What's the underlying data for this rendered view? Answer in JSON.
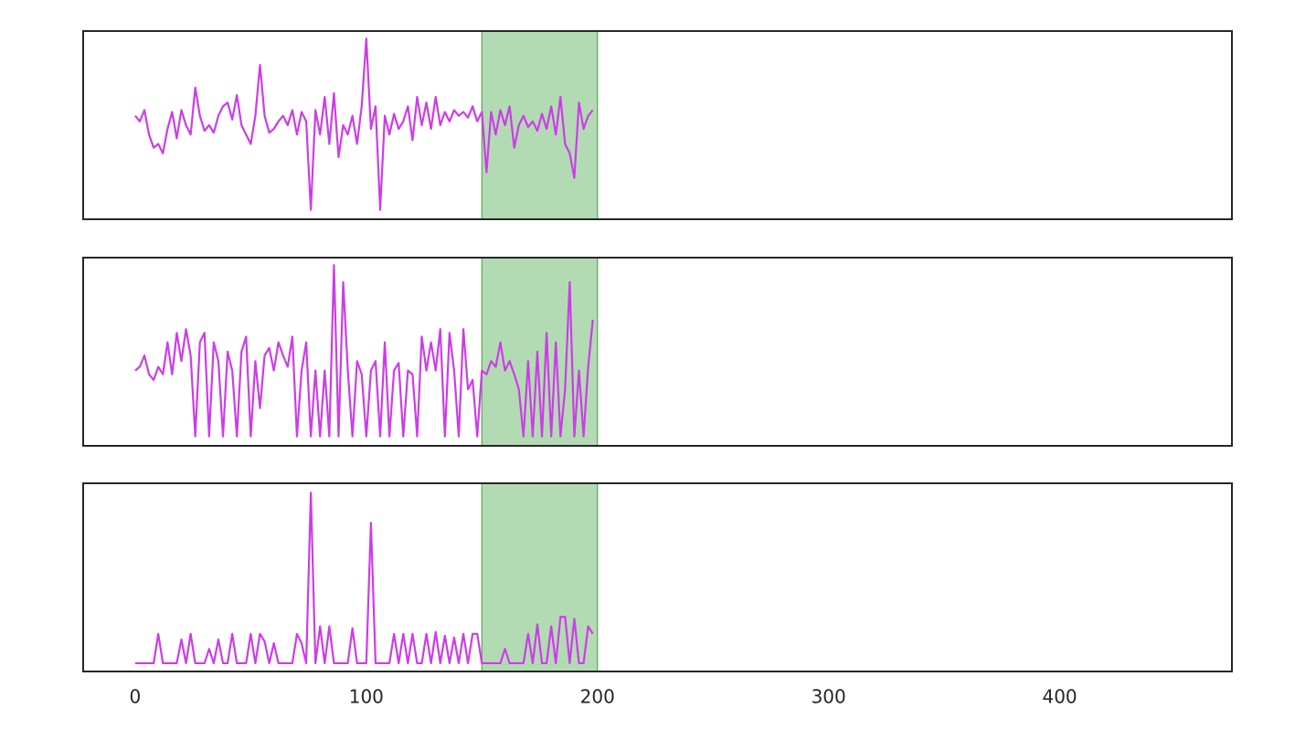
{
  "chart_data": [
    {
      "type": "line",
      "color": "#cc3de8",
      "xlim": [
        -22.5,
        474.5
      ],
      "ylim": [
        0,
        100
      ],
      "span": [
        150,
        200
      ],
      "span_color": "#b3dbb3",
      "span_edge": "#5aa85a",
      "x": [
        0,
        2,
        4,
        6,
        8,
        10,
        12,
        14,
        16,
        18,
        20,
        22,
        24,
        26,
        28,
        30,
        32,
        34,
        36,
        38,
        40,
        42,
        44,
        46,
        48,
        50,
        52,
        54,
        56,
        58,
        60,
        62,
        64,
        66,
        68,
        70,
        72,
        74,
        76,
        78,
        80,
        82,
        84,
        86,
        88,
        90,
        92,
        94,
        96,
        98,
        100,
        102,
        104,
        106,
        108,
        110,
        112,
        114,
        116,
        118,
        120,
        122,
        124,
        126,
        128,
        130,
        132,
        134,
        136,
        138,
        140,
        142,
        144,
        146,
        148,
        150,
        152,
        154,
        156,
        158,
        160,
        162,
        164,
        166,
        168,
        170,
        172,
        174,
        176,
        178,
        180,
        182,
        184,
        186,
        188,
        190,
        192,
        194,
        196,
        198
      ],
      "values": [
        55,
        52,
        58,
        45,
        38,
        40,
        35,
        48,
        57,
        43,
        58,
        50,
        45,
        70,
        55,
        47,
        50,
        46,
        55,
        60,
        62,
        53,
        66,
        50,
        45,
        40,
        55,
        82,
        55,
        46,
        48,
        52,
        55,
        50,
        58,
        45,
        57,
        52,
        5,
        58,
        45,
        65,
        40,
        67,
        33,
        50,
        45,
        55,
        40,
        60,
        96,
        48,
        60,
        5,
        55,
        45,
        56,
        48,
        52,
        60,
        42,
        65,
        50,
        62,
        48,
        65,
        50,
        57,
        52,
        58,
        55,
        57,
        54,
        60,
        52,
        57,
        25,
        57,
        45,
        58,
        50,
        60,
        38,
        50,
        55,
        49,
        52,
        47,
        56,
        48,
        60,
        45,
        65,
        40,
        35,
        22,
        62,
        48,
        55,
        58
      ]
    },
    {
      "type": "line",
      "color": "#cc3de8",
      "xlim": [
        -22.5,
        474.5
      ],
      "ylim": [
        0,
        100
      ],
      "span": [
        150,
        200
      ],
      "span_color": "#b3dbb3",
      "span_edge": "#5aa85a",
      "x": [
        0,
        2,
        4,
        6,
        8,
        10,
        12,
        14,
        16,
        18,
        20,
        22,
        24,
        26,
        28,
        30,
        32,
        34,
        36,
        38,
        40,
        42,
        44,
        46,
        48,
        50,
        52,
        54,
        56,
        58,
        60,
        62,
        64,
        66,
        68,
        70,
        72,
        74,
        76,
        78,
        80,
        82,
        84,
        86,
        88,
        90,
        92,
        94,
        96,
        98,
        100,
        102,
        104,
        106,
        108,
        110,
        112,
        114,
        116,
        118,
        120,
        122,
        124,
        126,
        128,
        130,
        132,
        134,
        136,
        138,
        140,
        142,
        144,
        146,
        148,
        150,
        152,
        154,
        156,
        158,
        160,
        162,
        164,
        166,
        168,
        170,
        172,
        174,
        176,
        178,
        180,
        182,
        184,
        186,
        188,
        190,
        192,
        194,
        196,
        198
      ],
      "values": [
        40,
        42,
        48,
        38,
        35,
        42,
        38,
        55,
        38,
        60,
        45,
        62,
        48,
        5,
        55,
        60,
        5,
        55,
        45,
        5,
        50,
        40,
        5,
        50,
        58,
        5,
        45,
        20,
        48,
        52,
        40,
        55,
        48,
        42,
        58,
        5,
        40,
        55,
        5,
        40,
        5,
        40,
        5,
        96,
        5,
        87,
        40,
        5,
        45,
        38,
        5,
        40,
        45,
        5,
        55,
        5,
        40,
        44,
        5,
        40,
        38,
        5,
        58,
        40,
        55,
        40,
        62,
        5,
        60,
        40,
        5,
        62,
        30,
        35,
        5,
        40,
        38,
        45,
        42,
        55,
        40,
        45,
        38,
        30,
        5,
        45,
        5,
        50,
        5,
        60,
        5,
        55,
        5,
        30,
        87,
        5,
        40,
        5,
        42,
        67
      ]
    },
    {
      "type": "line",
      "color": "#cc3de8",
      "xlim": [
        -22.5,
        474.5
      ],
      "ylim": [
        0,
        100
      ],
      "span": [
        150,
        200
      ],
      "span_color": "#b3dbb3",
      "span_edge": "#5aa85a",
      "xticks": [
        0,
        100,
        200,
        300,
        400
      ],
      "x": [
        0,
        2,
        4,
        6,
        8,
        10,
        12,
        14,
        16,
        18,
        20,
        22,
        24,
        26,
        28,
        30,
        32,
        34,
        36,
        38,
        40,
        42,
        44,
        46,
        48,
        50,
        52,
        54,
        56,
        58,
        60,
        62,
        64,
        66,
        68,
        70,
        72,
        74,
        76,
        78,
        80,
        82,
        84,
        86,
        88,
        90,
        92,
        94,
        96,
        98,
        100,
        102,
        104,
        106,
        108,
        110,
        112,
        114,
        116,
        118,
        120,
        122,
        124,
        126,
        128,
        130,
        132,
        134,
        136,
        138,
        140,
        142,
        144,
        146,
        148,
        150,
        152,
        154,
        156,
        158,
        160,
        162,
        164,
        166,
        168,
        170,
        172,
        174,
        176,
        178,
        180,
        182,
        184,
        186,
        188,
        190,
        192,
        194,
        196,
        198
      ],
      "values": [
        4.4,
        4.4,
        4.4,
        4.4,
        4.4,
        20,
        4.4,
        4.4,
        4.4,
        4.4,
        17,
        4.4,
        20,
        4.4,
        4.4,
        4.4,
        12,
        4.4,
        17,
        4.4,
        4.4,
        20,
        4.4,
        4.4,
        4.4,
        20,
        4.4,
        20,
        16,
        4.4,
        15,
        4.4,
        4.4,
        4.4,
        4.4,
        20,
        15,
        4.4,
        95,
        4.4,
        24,
        4.4,
        24,
        4.4,
        4.4,
        4.4,
        4.4,
        23,
        4.4,
        4.4,
        4.4,
        79,
        4.4,
        4.4,
        4.4,
        4.4,
        20,
        4.4,
        20,
        4.4,
        20,
        4.4,
        4.4,
        20,
        4.4,
        21,
        4.4,
        19,
        4.4,
        18,
        4.4,
        20,
        4.4,
        20,
        20,
        4.4,
        4.4,
        4.4,
        4.4,
        4.4,
        12,
        4.4,
        4.4,
        4.4,
        4.4,
        20,
        4.4,
        25,
        4.4,
        4.4,
        24,
        4.4,
        29,
        29,
        4.4,
        28,
        4.4,
        4.4,
        24,
        20
      ]
    }
  ]
}
